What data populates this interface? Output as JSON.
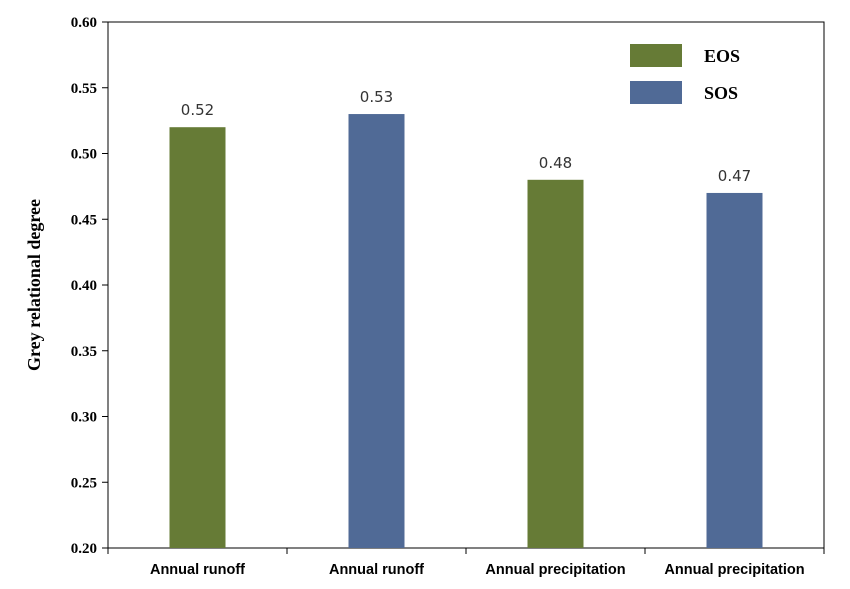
{
  "chart_data": {
    "type": "bar",
    "title": "",
    "xlabel": "",
    "ylabel": "Grey relational degree",
    "ylim": [
      0.2,
      0.6
    ],
    "yticks": [
      "0.20",
      "0.25",
      "0.30",
      "0.35",
      "0.40",
      "0.45",
      "0.50",
      "0.55",
      "0.60"
    ],
    "grid": false,
    "legend_position": "top-right",
    "categories": [
      "Annual runoff",
      "Annual runoff",
      "Annual precipitation",
      "Annual precipitation"
    ],
    "values": [
      0.52,
      0.53,
      0.48,
      0.47
    ],
    "value_labels": [
      "0.52",
      "0.53",
      "0.48",
      "0.47"
    ],
    "bar_series": [
      "EOS",
      "SOS",
      "EOS",
      "SOS"
    ],
    "series": [
      {
        "name": "EOS",
        "color": "#667b36"
      },
      {
        "name": "SOS",
        "color": "#506a96"
      }
    ]
  }
}
